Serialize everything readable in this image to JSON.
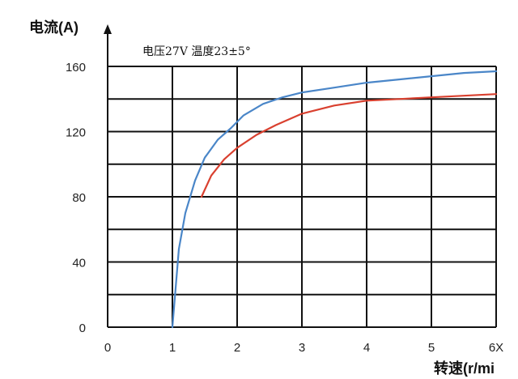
{
  "chart_data": {
    "type": "line",
    "ylabel": "电流(A)",
    "xlabel": "转速(r/mi",
    "annotation": "电压27V  温度23±5°",
    "x_tick_labels": [
      "0",
      "1",
      "2",
      "3",
      "4",
      "5",
      "6X"
    ],
    "y_tick_labels": [
      "0",
      "40",
      "80",
      "120",
      "160"
    ],
    "xlim": [
      0,
      6
    ],
    "ylim": [
      0,
      160
    ],
    "grid": true,
    "series": [
      {
        "color": "#4a86c8",
        "x": [
          1.0,
          1.1,
          1.2,
          1.35,
          1.5,
          1.7,
          1.9,
          2.1,
          2.4,
          2.7,
          3.0,
          3.5,
          4.0,
          4.5,
          5.0,
          5.5,
          6.0
        ],
        "y": [
          0,
          48,
          70,
          90,
          104,
          115,
          122,
          130,
          137,
          141,
          144,
          147,
          150,
          152,
          154,
          156,
          157
        ]
      },
      {
        "color": "#d9402f",
        "x": [
          1.45,
          1.6,
          1.8,
          2.0,
          2.3,
          2.6,
          3.0,
          3.5,
          4.0,
          4.5,
          5.0,
          5.5,
          6.0
        ],
        "y": [
          80,
          93,
          103,
          110,
          118,
          124,
          131,
          136,
          139,
          140,
          141,
          142,
          143
        ]
      }
    ]
  }
}
